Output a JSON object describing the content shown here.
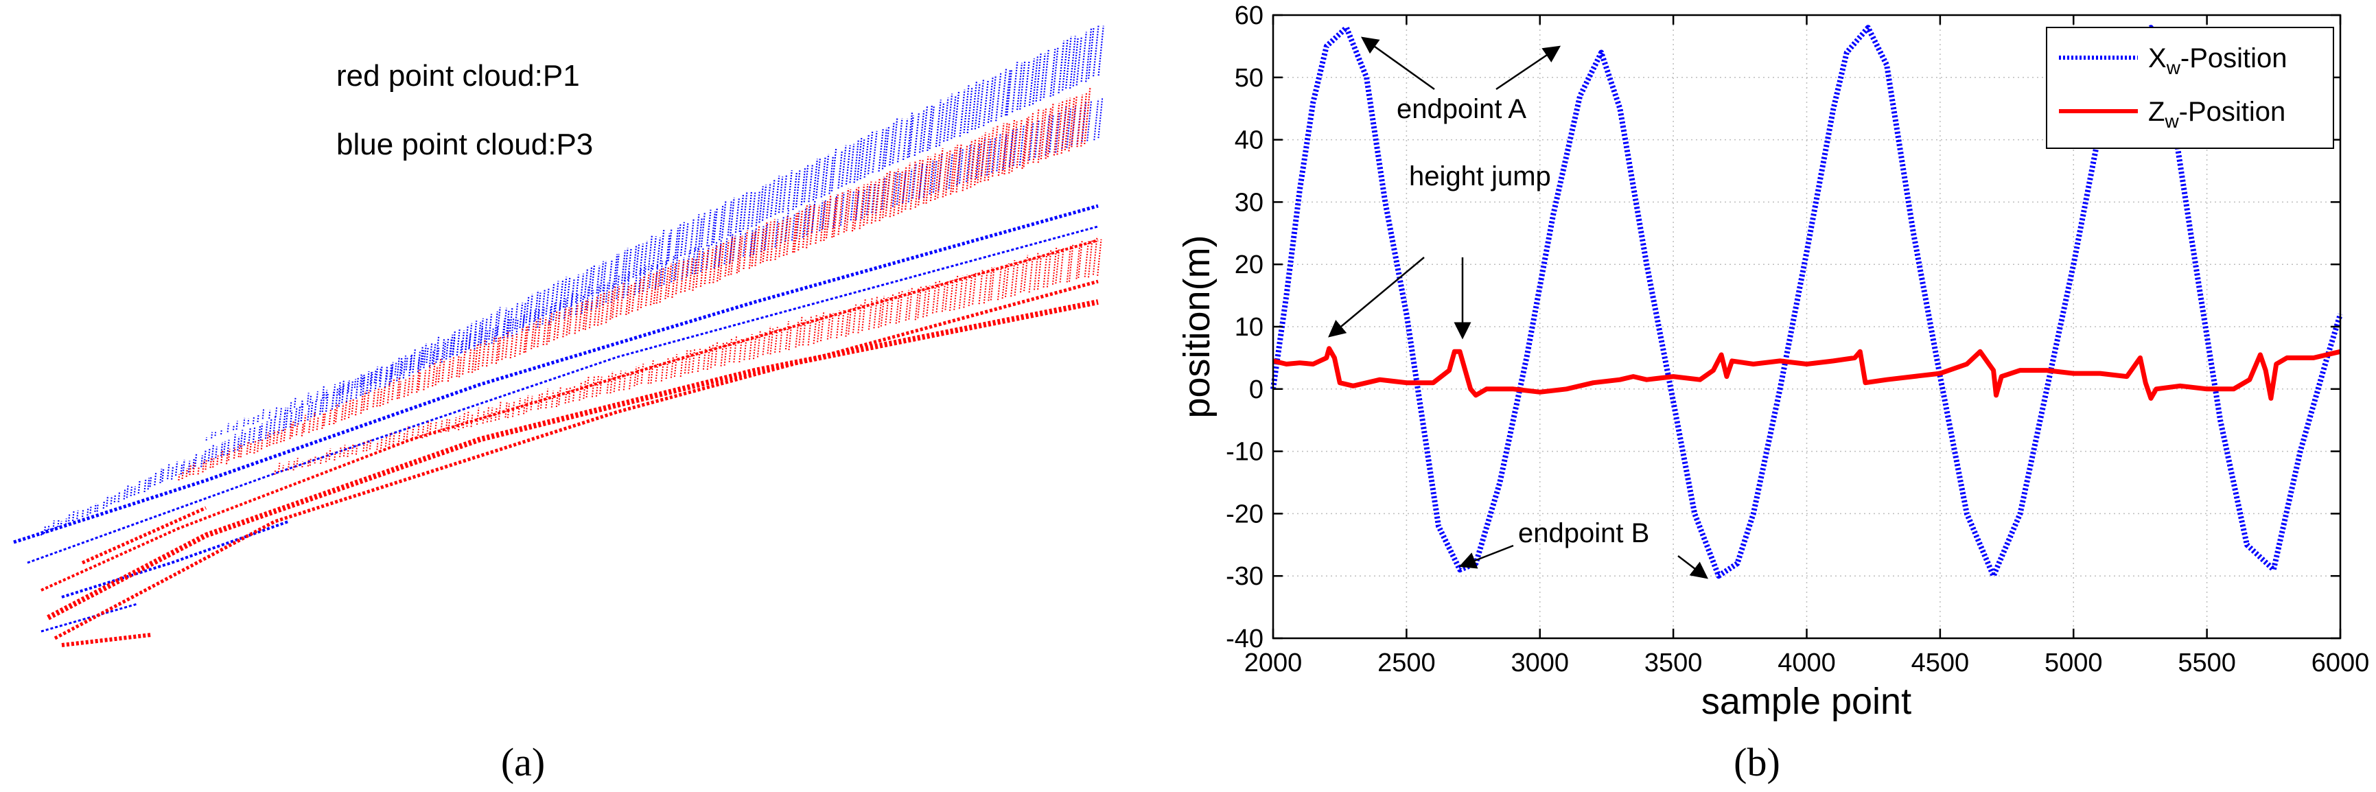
{
  "panel_a": {
    "label": "(a)",
    "annotations": [
      "red point cloud:P1",
      "blue point cloud:P3"
    ],
    "colors": {
      "p1": "#ff0000",
      "p3": "#0000ff"
    }
  },
  "panel_b": {
    "label": "(b)"
  },
  "chart_data": {
    "type": "line",
    "title": "",
    "xlabel": "sample point",
    "ylabel": "position(m)",
    "xlim": [
      2000,
      6000
    ],
    "ylim": [
      -40,
      60
    ],
    "xticks": [
      2000,
      2500,
      3000,
      3500,
      4000,
      4500,
      5000,
      5500,
      6000
    ],
    "yticks": [
      -40,
      -30,
      -20,
      -10,
      0,
      10,
      20,
      30,
      40,
      50,
      60
    ],
    "grid": true,
    "legend_position": "top-right",
    "series": [
      {
        "name": "Xw-Position",
        "legend_main": "X",
        "legend_sub": "w",
        "legend_tail": "-Position",
        "color": "#0000ff",
        "style": "dotted",
        "x": [
          2000,
          2050,
          2100,
          2150,
          2200,
          2275,
          2350,
          2420,
          2500,
          2560,
          2620,
          2700,
          2760,
          2850,
          2950,
          3050,
          3150,
          3230,
          3300,
          3400,
          3500,
          3580,
          3670,
          3740,
          3800,
          3900,
          4000,
          4100,
          4150,
          4230,
          4300,
          4400,
          4500,
          4600,
          4700,
          4800,
          4900,
          5000,
          5100,
          5200,
          5290,
          5350,
          5450,
          5550,
          5650,
          5750,
          5850,
          5950,
          6000
        ],
        "y": [
          0,
          15,
          32,
          46,
          55,
          58,
          50,
          30,
          12,
          -5,
          -22,
          -29,
          -28,
          -15,
          5,
          28,
          47,
          54,
          45,
          20,
          -2,
          -20,
          -30,
          -28,
          -20,
          0,
          22,
          45,
          54,
          58,
          52,
          25,
          2,
          -20,
          -30,
          -20,
          0,
          20,
          42,
          55,
          58,
          50,
          22,
          -5,
          -25,
          -29,
          -10,
          5,
          12
        ]
      },
      {
        "name": "Zw-Position",
        "legend_main": "Z",
        "legend_sub": "w",
        "legend_tail": "-Position",
        "color": "#ff0000",
        "style": "solid",
        "x": [
          2000,
          2050,
          2100,
          2150,
          2200,
          2210,
          2230,
          2250,
          2300,
          2400,
          2500,
          2600,
          2660,
          2680,
          2700,
          2720,
          2740,
          2760,
          2800,
          2900,
          3000,
          3100,
          3200,
          3300,
          3350,
          3400,
          3500,
          3600,
          3650,
          3680,
          3700,
          3720,
          3800,
          3900,
          4000,
          4100,
          4180,
          4200,
          4220,
          4300,
          4400,
          4500,
          4600,
          4650,
          4700,
          4710,
          4730,
          4800,
          4900,
          5000,
          5100,
          5200,
          5250,
          5270,
          5290,
          5310,
          5400,
          5500,
          5600,
          5660,
          5700,
          5720,
          5740,
          5760,
          5800,
          5900,
          6000
        ],
        "y": [
          4.5,
          4,
          4.2,
          4,
          5,
          6.5,
          5,
          1,
          0.5,
          1.5,
          1,
          1,
          3,
          6,
          6,
          3,
          0,
          -1,
          0,
          0,
          -0.5,
          0,
          1,
          1.5,
          2,
          1.5,
          2,
          1.5,
          3,
          5.5,
          2,
          4.5,
          4,
          4.5,
          4,
          4.5,
          5,
          6,
          1,
          1.5,
          2,
          2.5,
          4,
          6,
          3,
          -1,
          2,
          3,
          3,
          2.5,
          2.5,
          2,
          5,
          1,
          -1.5,
          0,
          0.5,
          0,
          0,
          1.5,
          5.5,
          3,
          -1.5,
          4,
          5,
          5,
          6
        ]
      }
    ],
    "annotations": [
      {
        "text": "endpoint A"
      },
      {
        "text": "height jump"
      },
      {
        "text": "endpoint B"
      }
    ]
  }
}
